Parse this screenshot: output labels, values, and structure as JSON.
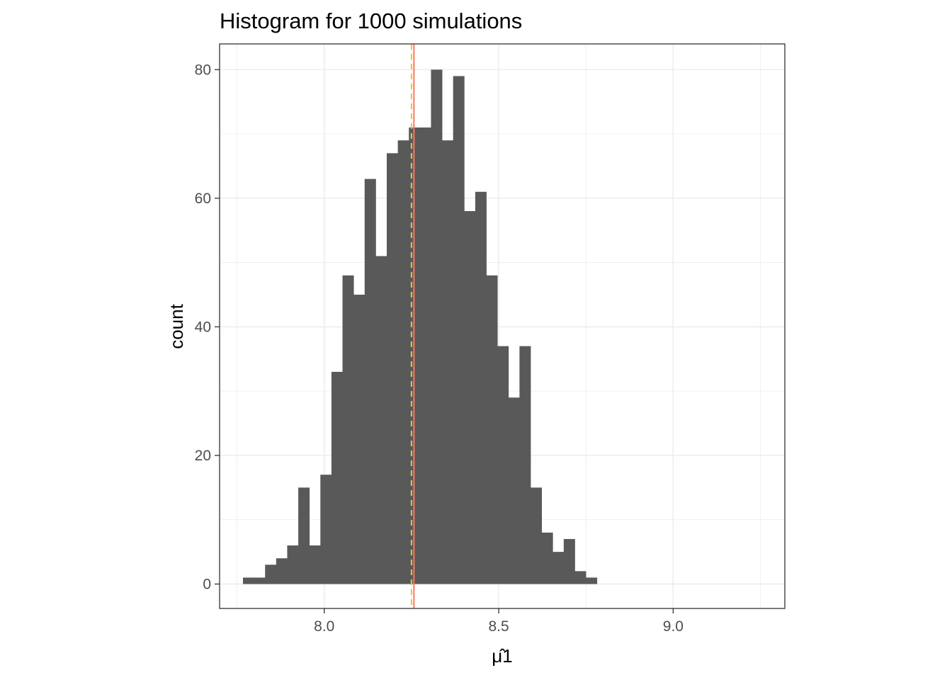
{
  "chart_data": {
    "type": "bar",
    "title": "Histogram for 1000 simulations",
    "xlabel": "μ̂1",
    "ylabel": "count",
    "xlim": [
      7.7,
      9.32
    ],
    "ylim": [
      -3.8,
      84
    ],
    "grid": true,
    "x_ticks": [
      {
        "value": 8.0,
        "label": "8.0"
      },
      {
        "value": 8.5,
        "label": "8.5"
      },
      {
        "value": 9.0,
        "label": "9.0"
      }
    ],
    "y_ticks": [
      {
        "value": 0,
        "label": "0"
      },
      {
        "value": 20,
        "label": "20"
      },
      {
        "value": 40,
        "label": "40"
      },
      {
        "value": 60,
        "label": "60"
      },
      {
        "value": 80,
        "label": "80"
      }
    ],
    "bin_start": 7.767,
    "bin_width": 0.0317,
    "values": [
      1,
      1,
      3,
      4,
      6,
      15,
      6,
      17,
      33,
      48,
      45,
      63,
      51,
      67,
      69,
      71,
      71,
      80,
      69,
      79,
      58,
      61,
      48,
      37,
      29,
      37,
      15,
      8,
      5,
      7,
      2,
      1
    ],
    "vlines": [
      {
        "x": 8.257,
        "color": "#f8766d",
        "style": "solid"
      },
      {
        "x": 8.25,
        "color": "#f5c518",
        "style": "dashed"
      }
    ],
    "bar_color": "#595959"
  }
}
